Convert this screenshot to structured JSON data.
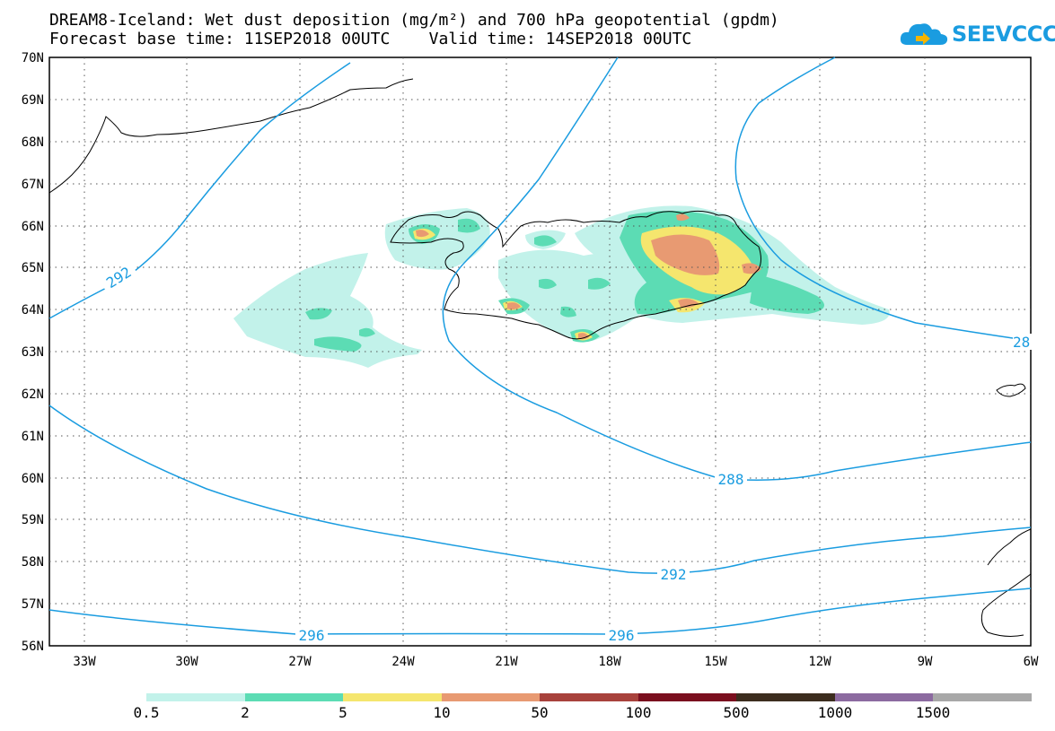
{
  "title": {
    "line1": "DREAM8-Iceland: Wet dust deposition (mg/m²) and 700 hPa geopotential (gpdm)",
    "line2": "Forecast base time: 11SEP2018 00UTC    Valid time: 14SEP2018 00UTC"
  },
  "logo": {
    "text": "SEEVCCC",
    "icon": "cloud-logo-icon",
    "color": "#1a9ce0"
  },
  "map": {
    "lat_labels": [
      "70N",
      "69N",
      "68N",
      "67N",
      "66N",
      "65N",
      "64N",
      "63N",
      "62N",
      "61N",
      "60N",
      "59N",
      "58N",
      "57N",
      "56N"
    ],
    "lon_labels": [
      "33W",
      "30W",
      "27W",
      "24W",
      "21W",
      "18W",
      "15W",
      "12W",
      "9W",
      "6W"
    ],
    "lat_range": [
      56,
      70
    ],
    "lon_range": [
      -34.5,
      -6
    ],
    "gridlines": true,
    "contour_color": "#1a9ce0",
    "contour_labels": [
      "292",
      "288",
      "28",
      "292",
      "296",
      "296"
    ]
  },
  "legend": {
    "colors": [
      "#c2f2ea",
      "#5cdcb4",
      "#f5e66e",
      "#e89a72",
      "#a8423c",
      "#7a0f1e",
      "#3c2d1e",
      "#8c6aa0",
      "#a8a8a8"
    ],
    "labels": [
      "0.5",
      "2",
      "5",
      "10",
      "50",
      "100",
      "500",
      "1000",
      "1500"
    ]
  }
}
